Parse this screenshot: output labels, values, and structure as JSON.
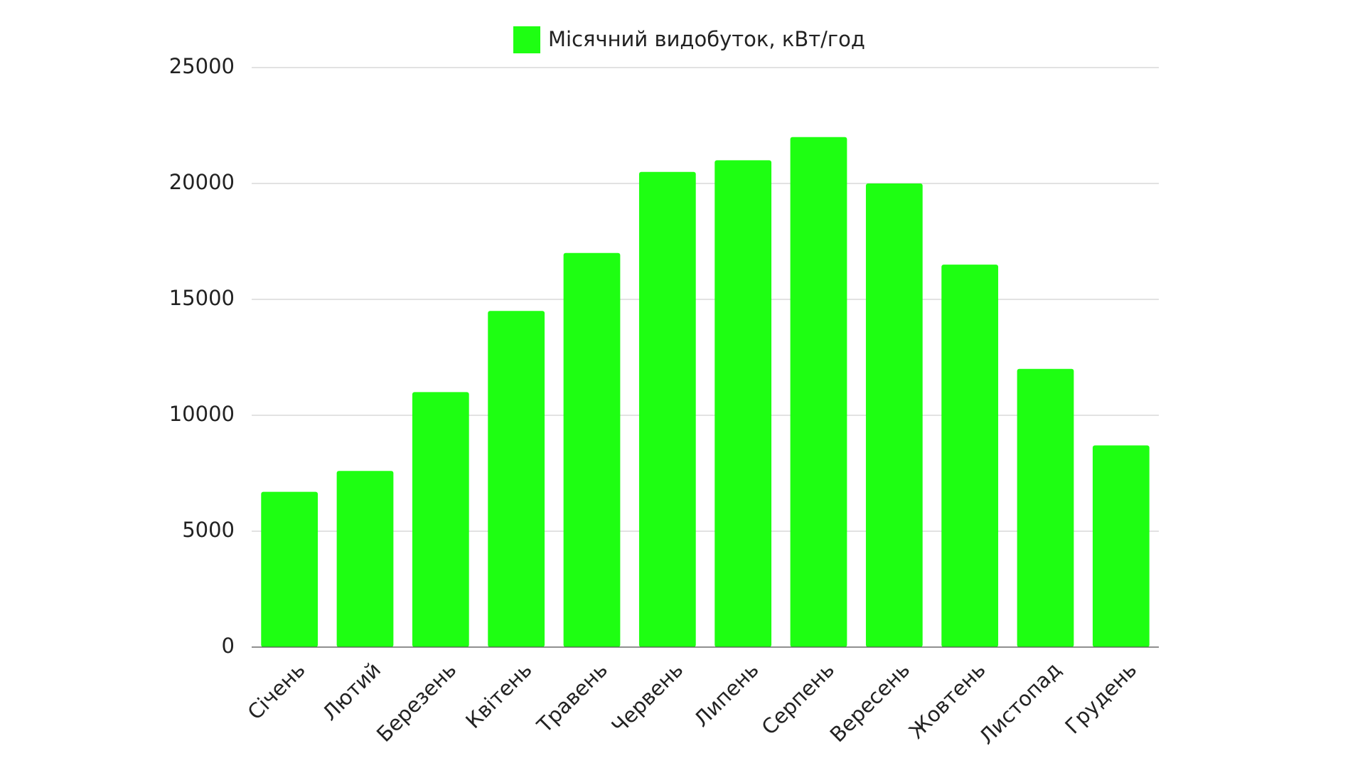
{
  "chart_data": {
    "type": "bar",
    "categories": [
      "Січень",
      "Лютий",
      "Березень",
      "Квітень",
      "Травень",
      "Червень",
      "Липень",
      "Серпень",
      "Вересень",
      "Жовтень",
      "Листопад",
      "Грудень"
    ],
    "series": [
      {
        "name": "Місячний видобуток, кВт/год",
        "color": "#1eff12",
        "values": [
          6700,
          7600,
          11000,
          14500,
          17000,
          20500,
          21000,
          22000,
          20000,
          16500,
          12000,
          8700
        ]
      }
    ],
    "ylim": [
      0,
      25000
    ],
    "yticks": [
      0,
      5000,
      10000,
      15000,
      20000,
      25000
    ],
    "grid": true,
    "legend": "top"
  }
}
